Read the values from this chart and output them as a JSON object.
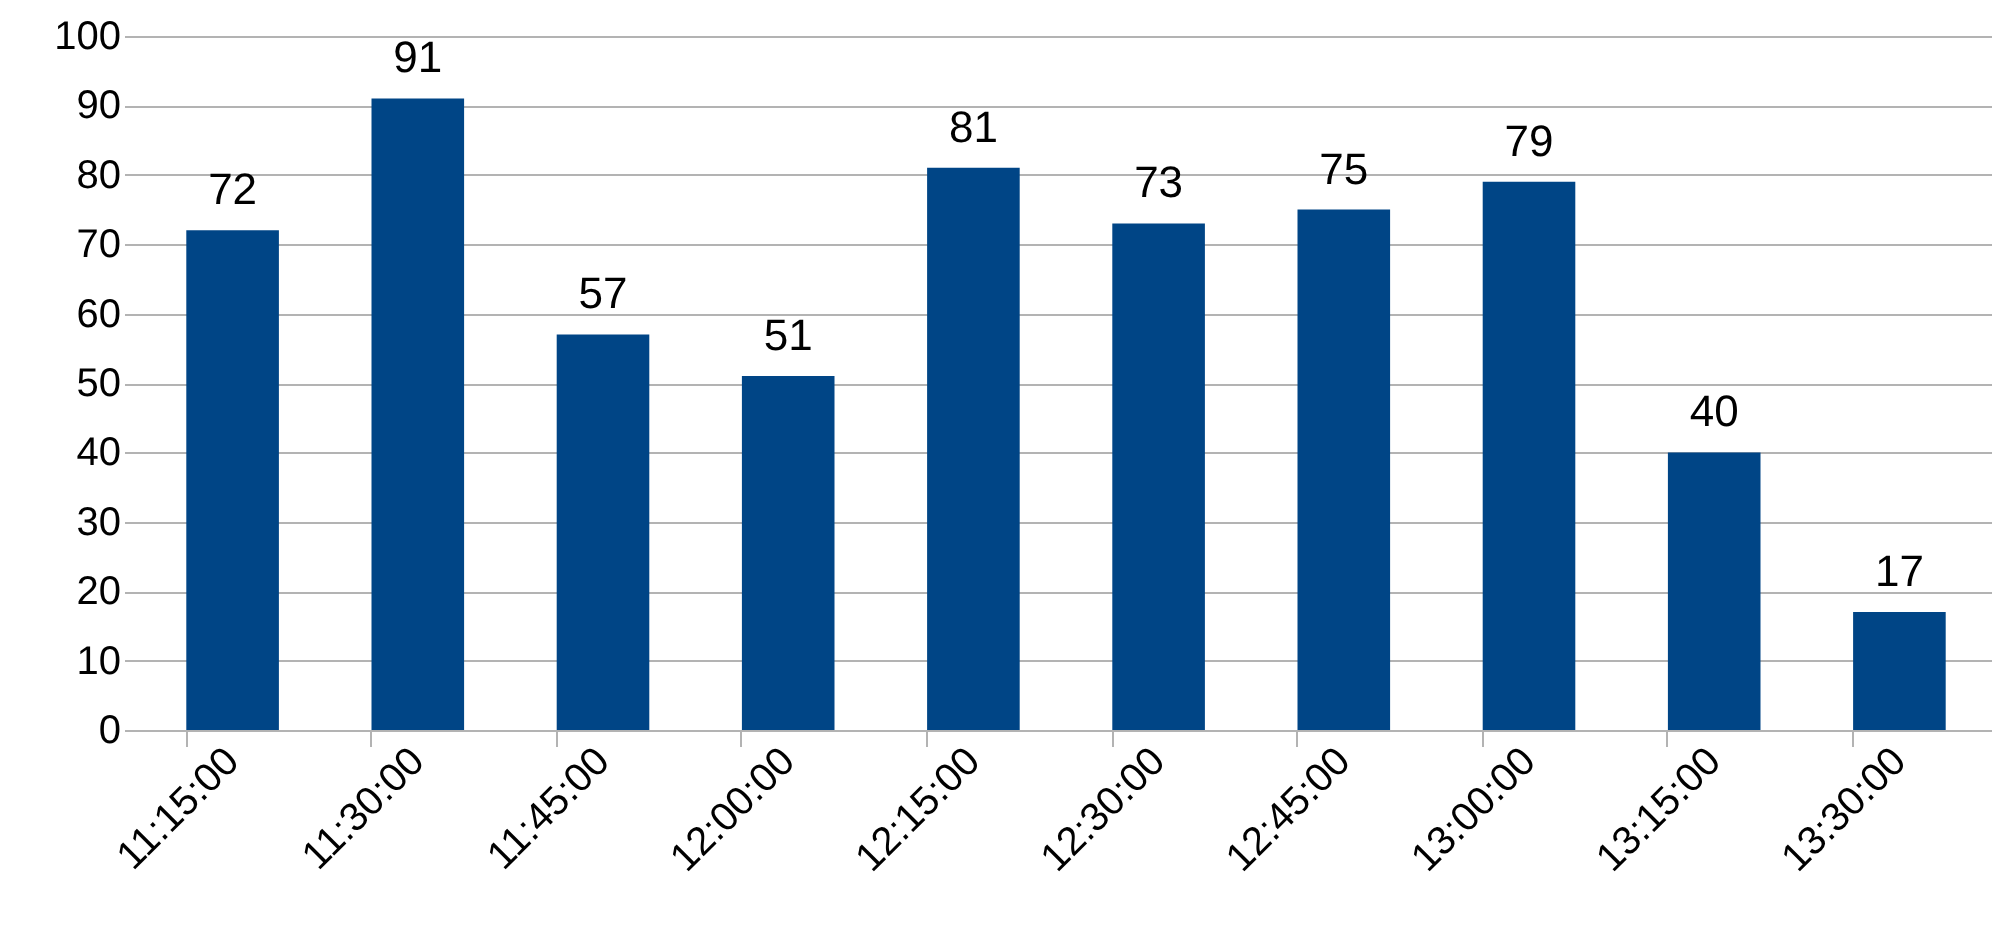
{
  "chart_data": {
    "type": "bar",
    "categories": [
      "11:15:00",
      "11:30:00",
      "11:45:00",
      "12:00:00",
      "12:15:00",
      "12:30:00",
      "12:45:00",
      "13:00:00",
      "13:15:00",
      "13:30:00"
    ],
    "values": [
      72,
      91,
      57,
      51,
      81,
      73,
      75,
      79,
      40,
      17
    ],
    "color": "#004586",
    "ylim": [
      0,
      100
    ],
    "yticks": [
      0,
      10,
      20,
      30,
      40,
      50,
      60,
      70,
      80,
      90,
      100
    ],
    "grid": "y",
    "data_labels": true
  }
}
